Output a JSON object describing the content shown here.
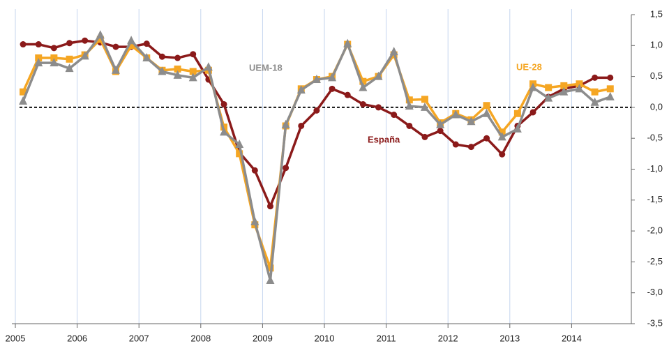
{
  "chart_data": {
    "type": "line",
    "x": [
      2005.125,
      2005.375,
      2005.625,
      2005.875,
      2006.125,
      2006.375,
      2006.625,
      2006.875,
      2007.125,
      2007.375,
      2007.625,
      2007.875,
      2008.125,
      2008.375,
      2008.625,
      2008.875,
      2009.125,
      2009.375,
      2009.625,
      2009.875,
      2010.125,
      2010.375,
      2010.625,
      2010.875,
      2011.125,
      2011.375,
      2011.625,
      2011.875,
      2012.125,
      2012.375,
      2012.625,
      2012.875,
      2013.125,
      2013.375,
      2013.625,
      2013.875,
      2014.125,
      2014.375,
      2014.625
    ],
    "series": [
      {
        "name": "España",
        "color": "#8b1a1a",
        "marker": "circle",
        "values": [
          1.02,
          1.02,
          0.96,
          1.04,
          1.08,
          1.05,
          0.98,
          0.98,
          1.03,
          0.82,
          0.8,
          0.86,
          0.45,
          0.05,
          -0.73,
          -1.02,
          -1.6,
          -0.98,
          -0.3,
          -0.05,
          0.3,
          0.2,
          0.05,
          0.0,
          -0.12,
          -0.3,
          -0.48,
          -0.38,
          -0.6,
          -0.64,
          -0.5,
          -0.76,
          -0.3,
          -0.08,
          0.17,
          0.3,
          0.35,
          0.48,
          0.48
        ]
      },
      {
        "name": "UE-28",
        "color": "#f5a623",
        "marker": "square",
        "values": [
          0.25,
          0.8,
          0.8,
          0.78,
          0.85,
          1.1,
          0.58,
          1.0,
          0.8,
          0.6,
          0.62,
          0.58,
          0.6,
          -0.32,
          -0.75,
          -1.9,
          -2.6,
          -0.3,
          0.3,
          0.45,
          0.5,
          1.02,
          0.42,
          0.5,
          0.85,
          0.12,
          0.13,
          -0.25,
          -0.1,
          -0.2,
          0.03,
          -0.4,
          -0.1,
          0.38,
          0.32,
          0.35,
          0.38,
          0.25,
          0.3
        ]
      },
      {
        "name": "UEM-18",
        "color": "#8c8c8c",
        "marker": "triangle",
        "values": [
          0.1,
          0.72,
          0.72,
          0.63,
          0.83,
          1.17,
          0.6,
          1.08,
          0.8,
          0.58,
          0.52,
          0.48,
          0.65,
          -0.4,
          -0.6,
          -1.85,
          -2.8,
          -0.28,
          0.28,
          0.45,
          0.48,
          1.03,
          0.32,
          0.5,
          0.9,
          0.02,
          0.0,
          -0.28,
          -0.12,
          -0.23,
          -0.1,
          -0.48,
          -0.35,
          0.32,
          0.15,
          0.25,
          0.3,
          0.08,
          0.17
        ]
      }
    ],
    "xlim": [
      2005,
      2015
    ],
    "xticks": [
      2005,
      2006,
      2007,
      2008,
      2009,
      2010,
      2011,
      2012,
      2013,
      2014
    ],
    "ylim": [
      -3.5,
      1.5
    ],
    "yticks": [
      {
        "value": 1.5,
        "label": "1,5"
      },
      {
        "value": 1.0,
        "label": "1,0"
      },
      {
        "value": 0.5,
        "label": "0,5"
      },
      {
        "value": 0.0,
        "label": "0,0"
      },
      {
        "value": -0.5,
        "label": "-0,5"
      },
      {
        "value": -1.0,
        "label": "-1,0"
      },
      {
        "value": -1.5,
        "label": "-1,5"
      },
      {
        "value": -2.0,
        "label": "-2,0"
      },
      {
        "value": -2.5,
        "label": "-2,5"
      },
      {
        "value": -3.0,
        "label": "-3,0"
      },
      {
        "value": -3.5,
        "label": "-3,5"
      }
    ],
    "grid": "x",
    "zero_line": true
  }
}
